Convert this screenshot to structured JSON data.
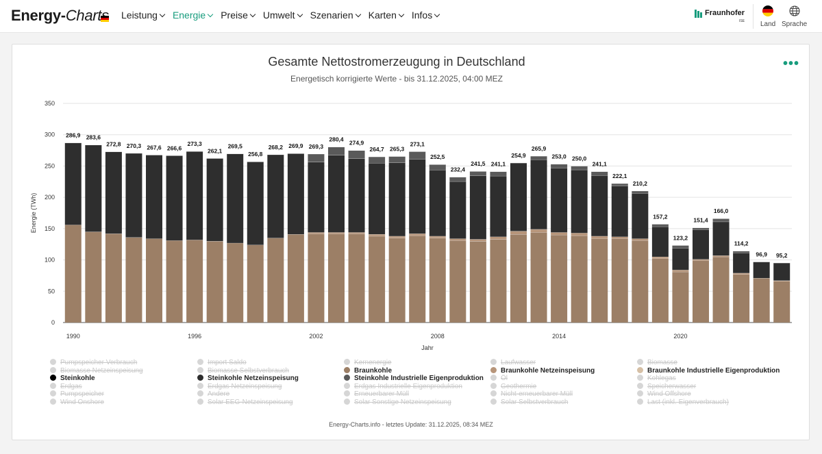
{
  "header": {
    "brand_main": "Energy-",
    "brand_italic": "Charts",
    "nav": [
      {
        "label": "Leistung",
        "active": false
      },
      {
        "label": "Energie",
        "active": true
      },
      {
        "label": "Preise",
        "active": false
      },
      {
        "label": "Umwelt",
        "active": false
      },
      {
        "label": "Szenarien",
        "active": false
      },
      {
        "label": "Karten",
        "active": false
      },
      {
        "label": "Infos",
        "active": false
      }
    ],
    "partner": "Fraunhofer",
    "partner_sub": "ISE",
    "land_label": "Land",
    "sprache_label": "Sprache",
    "accent_color": "#179c7d"
  },
  "chart_data": {
    "type": "bar",
    "stacked": true,
    "title": "Gesamte Nettostromerzeugung in Deutschland",
    "subtitle": "Energetisch korrigierte Werte - bis 31.12.2025, 04:00 MEZ",
    "xlabel": "Jahr",
    "ylabel": "Energie (TWh)",
    "ylim": [
      0,
      350
    ],
    "yticks": [
      0,
      50,
      100,
      150,
      200,
      250,
      300,
      350
    ],
    "xtick_labels": {
      "1990": "1990",
      "1996": "1996",
      "2002": "2002",
      "2008": "2008",
      "2014": "2014",
      "2020": "2020"
    },
    "grid": true,
    "categories": [
      1990,
      1991,
      1992,
      1993,
      1994,
      1995,
      1996,
      1997,
      1998,
      1999,
      2000,
      2001,
      2002,
      2003,
      2004,
      2005,
      2006,
      2007,
      2008,
      2009,
      2010,
      2011,
      2012,
      2013,
      2014,
      2015,
      2016,
      2017,
      2018,
      2019,
      2020,
      2021,
      2022,
      2023,
      2024,
      2025
    ],
    "totals_labels": [
      "286,9",
      "283,6",
      "272,8",
      "270,3",
      "267,6",
      "266,6",
      "273,3",
      "262,1",
      "269,5",
      "256,8",
      "268,2",
      "269,9",
      "269,3",
      "280,4",
      "274,9",
      "264,7",
      "265,3",
      "273,1",
      "252,5",
      "232,4",
      "241,5",
      "241,1",
      "254,9",
      "265,9",
      "253,0",
      "250,0",
      "241,1",
      "222,1",
      "210,2",
      "157,2",
      "123,2",
      "151,4",
      "166,0",
      "114,2",
      "96,9",
      "95,2"
    ],
    "series": [
      {
        "name": "Braunkohle",
        "color": "#9c7f66",
        "values": [
          156,
          145,
          142,
          136,
          134,
          131,
          132,
          130,
          127,
          124,
          135,
          141,
          142,
          142,
          142,
          138,
          135,
          139,
          135,
          131,
          130,
          133,
          141,
          144,
          140,
          139,
          134,
          134,
          131,
          102,
          81,
          99,
          105,
          77,
          71,
          66
        ]
      },
      {
        "name": "Braunkohle Netzeinspeisung",
        "color": "#b7957a",
        "values": [
          0,
          0,
          0,
          0,
          0,
          0,
          0,
          0,
          0,
          0,
          0,
          0,
          2,
          2,
          2,
          3,
          3,
          3,
          3,
          3,
          3,
          4,
          5,
          5,
          4,
          4,
          4,
          3,
          3,
          3,
          3,
          2,
          2,
          2,
          0,
          1
        ]
      },
      {
        "name": "Braunkohle Industrielle Eigenproduktion",
        "color": "#d6c0a6",
        "values": [
          0,
          0,
          0,
          0,
          0,
          0,
          0,
          0,
          0,
          0,
          0,
          0,
          0,
          0,
          0,
          0,
          0,
          0,
          0,
          0,
          0,
          0,
          0,
          0,
          0,
          0,
          0,
          0,
          0,
          0,
          0,
          0,
          0,
          0,
          0,
          0
        ]
      },
      {
        "name": "Steinkohle",
        "color": "#000000",
        "values": [
          0,
          0,
          0,
          0,
          0,
          0,
          0,
          0,
          0,
          0,
          0,
          0,
          0,
          0,
          0,
          0,
          0,
          0,
          0,
          0,
          0,
          0,
          0,
          0,
          0,
          0,
          0,
          0,
          0,
          0,
          0,
          0,
          0,
          0,
          0,
          0
        ]
      },
      {
        "name": "Steinkohle Netzeinspeisung",
        "color": "#2e2e2e",
        "values": [
          131,
          138.6,
          130.8,
          134.3,
          133.6,
          135.6,
          141.3,
          132.1,
          142.5,
          132.8,
          133.2,
          128.9,
          112.3,
          123.4,
          117.9,
          113.7,
          117.3,
          119.1,
          105.5,
          91.4,
          101.5,
          97.1,
          108.9,
          110.9,
          103.0,
          101.0,
          97.1,
          81.1,
          72.2,
          48.2,
          35.2,
          47.4,
          54.0,
          32.2,
          25.9,
          28.2
        ]
      },
      {
        "name": "Steinkohle Industrielle Eigenproduktion",
        "color": "#5a5a5a",
        "values": [
          0,
          0,
          0,
          0,
          0,
          0,
          0,
          0,
          0,
          0,
          0,
          0,
          13,
          13,
          13,
          10,
          10,
          12,
          9,
          7,
          7,
          7,
          0,
          6,
          6,
          6,
          6,
          4,
          4,
          4,
          4,
          3,
          5,
          3,
          0,
          0
        ]
      }
    ],
    "legend": [
      {
        "label": "Pumpspeicher Verbrauch",
        "visible": false
      },
      {
        "label": "Import Saldo",
        "visible": false
      },
      {
        "label": "Kernenergie",
        "visible": false
      },
      {
        "label": "Laufwasser",
        "visible": false
      },
      {
        "label": "Biomasse",
        "visible": false
      },
      {
        "label": "Biomasse Netzeinspeisung",
        "visible": false
      },
      {
        "label": "Biomasse Selbstverbrauch",
        "visible": false
      },
      {
        "label": "Braunkohle",
        "visible": true,
        "color": "#9c7f66"
      },
      {
        "label": "Braunkohle Netzeinspeisung",
        "visible": true,
        "color": "#b7957a"
      },
      {
        "label": "Braunkohle Industrielle Eigenproduktion",
        "visible": true,
        "color": "#d6c0a6"
      },
      {
        "label": "Steinkohle",
        "visible": true,
        "color": "#000000"
      },
      {
        "label": "Steinkohle Netzeinspeisung",
        "visible": true,
        "color": "#2e2e2e"
      },
      {
        "label": "Steinkohle Industrielle Eigenproduktion",
        "visible": true,
        "color": "#5a5a5a"
      },
      {
        "label": "Öl",
        "visible": false
      },
      {
        "label": "Kohlegas",
        "visible": false
      },
      {
        "label": "Erdgas",
        "visible": false
      },
      {
        "label": "Erdgas Netzeinspeisung",
        "visible": false
      },
      {
        "label": "Erdgas Industrielle Eigenproduktion",
        "visible": false
      },
      {
        "label": "Geothermie",
        "visible": false
      },
      {
        "label": "Speicherwasser",
        "visible": false
      },
      {
        "label": "Pumpspeicher",
        "visible": false
      },
      {
        "label": "Andere",
        "visible": false
      },
      {
        "label": "Erneuerbarer Müll",
        "visible": false
      },
      {
        "label": "Nicht-erneuerbarer Müll",
        "visible": false
      },
      {
        "label": "Wind Offshore",
        "visible": false
      },
      {
        "label": "Wind Onshore",
        "visible": false
      },
      {
        "label": "Solar EEG-Netzeinspeisung",
        "visible": false
      },
      {
        "label": "Solar Sonstige Netzeinspeisung",
        "visible": false
      },
      {
        "label": "Solar Selbstverbrauch",
        "visible": false
      },
      {
        "label": "Last (inkl. Eigenverbrauch)",
        "visible": false
      }
    ],
    "credits": "Energy-Charts.info - letztes Update: 31.12.2025, 08:34 MEZ"
  }
}
